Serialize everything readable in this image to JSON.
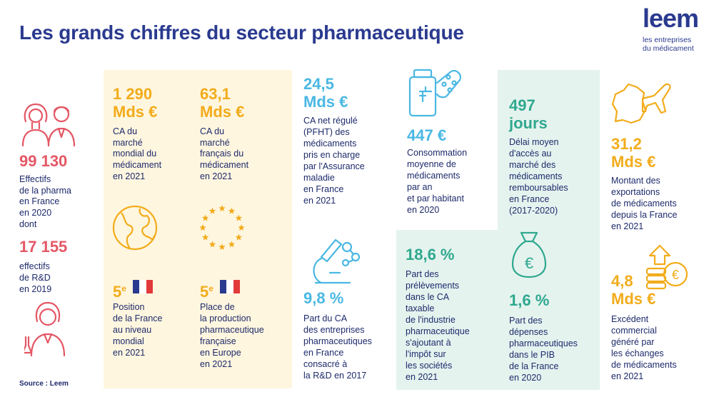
{
  "title": "Les grands chiffres du secteur pharmaceutique",
  "logo": {
    "word": "leem",
    "line1": "les entreprises",
    "line2": "du médicament"
  },
  "colors": {
    "pink": "#e45765",
    "orange": "#f2ac1b",
    "blue": "#4ab8e3",
    "teal": "#2fa88e",
    "navy": "#1d2a6b",
    "yellow_panel": "#fff6df",
    "teal_panel": "#e5f3ef"
  },
  "col1": {
    "icon_top": "people-icon",
    "value1": "99 130",
    "desc1": [
      "Effectifs",
      "de la pharma",
      "en France",
      "en 2020",
      "dont"
    ],
    "value2": "17 155",
    "desc2": [
      "effectifs",
      "de R&D",
      "en 2019"
    ],
    "icon_bottom": "researcher-icon"
  },
  "col2": {
    "value_line1": "1 290",
    "value_line2": "Mds €",
    "desc": [
      "CA du",
      "marché",
      "mondial du",
      "médicament",
      "en 2021"
    ],
    "icon": "globe-icon",
    "rank_number": "5",
    "rank_suffix": "e",
    "rank_desc": [
      "Position",
      "de la France",
      "au niveau",
      "mondial",
      "en 2021"
    ]
  },
  "col3": {
    "value_line1": "63,1",
    "value_line2": "Mds €",
    "desc": [
      "CA du",
      "marché",
      "français du",
      "médicament",
      "en 2021"
    ],
    "icon": "eu-stars-icon",
    "rank_number": "5",
    "rank_suffix": "e",
    "rank_desc": [
      "Place de",
      "la production",
      "pharmaceutique",
      "française",
      "en Europe",
      "en 2021"
    ]
  },
  "col4": {
    "value_line1": "24,5",
    "value_line2": "Mds €",
    "desc": [
      "CA net régulé",
      "(PFHT) des",
      "médicaments",
      "pris en charge",
      "par l'Assurance",
      "maladie",
      "en France",
      "en 2021"
    ],
    "icon": "microscope-icon",
    "value_b": "9,8 %",
    "desc_b": [
      "Part du CA",
      "des entreprises",
      "pharmaceutiques",
      "en France",
      "consacré à",
      "la R&D en 2017"
    ]
  },
  "col5": {
    "icon": "pill-bottle-icon",
    "value": "447 €",
    "desc": [
      "Consommation",
      "moyenne de",
      "médicaments",
      "par an",
      "et par habitant",
      "en 2020"
    ],
    "value_b": "18,6 %",
    "desc_b": [
      "Part des",
      "prélèvements",
      "dans le CA",
      "taxable",
      "de l'industrie",
      "pharmaceutique",
      "s'ajoutant à",
      "l'impôt sur",
      "les sociétés",
      "en 2021"
    ]
  },
  "col6": {
    "value_line1": "497",
    "value_line2": "jours",
    "desc": [
      "Délai moyen",
      "d'accès au",
      "marché des",
      "médicaments",
      "remboursables",
      "en France",
      "(2017-2020)"
    ],
    "icon": "money-bag-icon",
    "value_b": "1,6 %",
    "desc_b": [
      "Part des",
      "dépenses",
      "pharmaceutiques",
      "dans le PIB",
      "de la France",
      "en 2020"
    ]
  },
  "col7": {
    "icon": "france-plane-icon",
    "value_line1": "31,2",
    "value_line2": "Mds €",
    "desc": [
      "Montant des",
      "exportations",
      "de médicaments",
      "depuis la France",
      "en 2021"
    ],
    "icon_b": "coins-growth-icon",
    "value_b_line1": "4,8",
    "value_b_line2": "Mds €",
    "desc_b": [
      "Excédent",
      "commercial",
      "généré par",
      "les échanges",
      "de médicaments",
      "en 2021"
    ]
  },
  "source": "Source : Leem"
}
